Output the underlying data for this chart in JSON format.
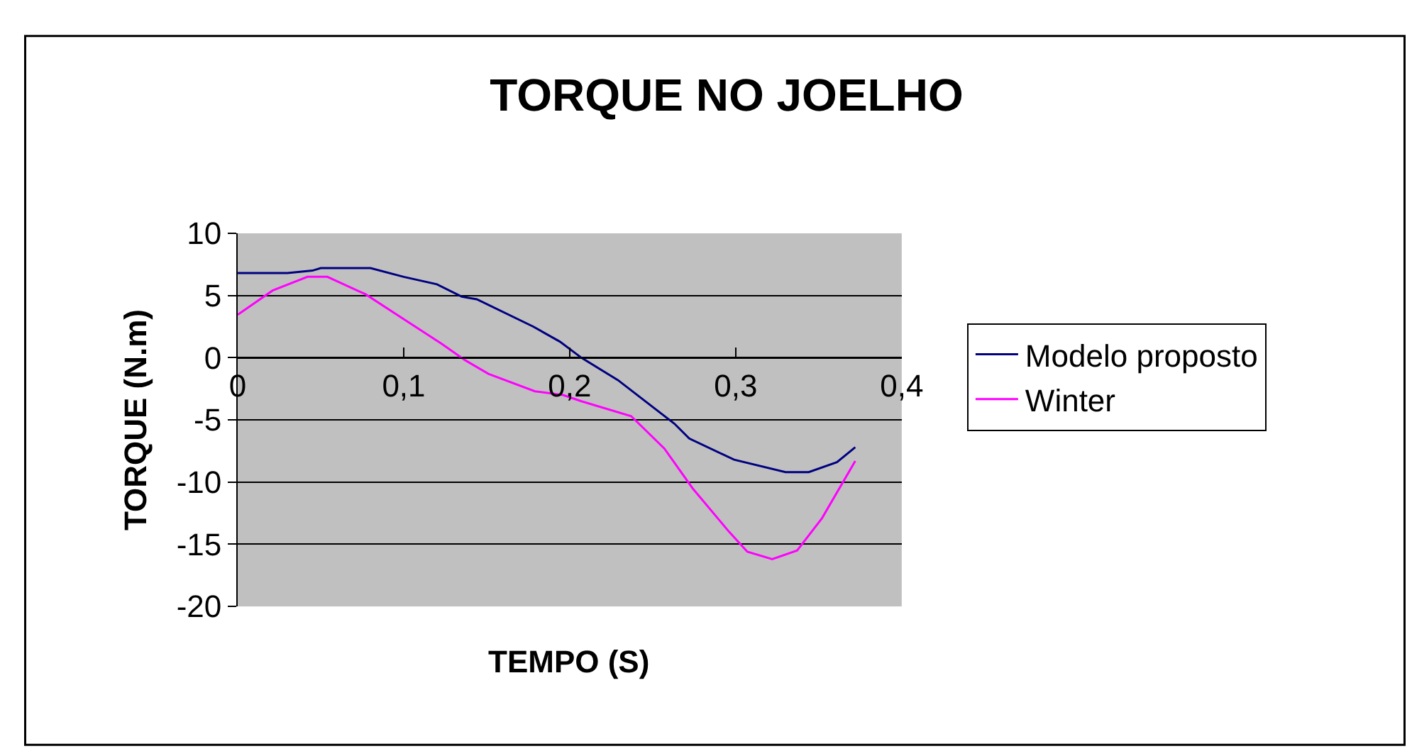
{
  "chart_data": {
    "type": "line",
    "title": "TORQUE NO JOELHO",
    "xlabel": "TEMPO (S)",
    "ylabel": "TORQUE (N.m)",
    "series": [
      {
        "name": "Modelo proposto",
        "color": "#000080",
        "x": [
          0,
          0.02,
          0.03,
          0.045,
          0.05,
          0.06,
          0.08,
          0.1,
          0.12,
          0.135,
          0.144,
          0.178,
          0.194,
          0.207,
          0.229,
          0.263,
          0.272,
          0.299,
          0.33,
          0.344,
          0.361,
          0.372
        ],
        "values": [
          6.8,
          6.8,
          6.8,
          7.0,
          7.2,
          7.2,
          7.2,
          6.5,
          5.9,
          4.9,
          4.7,
          2.5,
          1.3,
          0,
          -1.8,
          -5.3,
          -6.5,
          -8.2,
          -9.2,
          -9.2,
          -8.4,
          -7.2
        ]
      },
      {
        "name": "Winter",
        "color": "#ff00ff",
        "x": [
          0,
          0.021,
          0.042,
          0.054,
          0.077,
          0.1,
          0.123,
          0.137,
          0.151,
          0.179,
          0.196,
          0.207,
          0.237,
          0.257,
          0.274,
          0.296,
          0.307,
          0.322,
          0.337,
          0.352,
          0.372
        ],
        "values": [
          3.45,
          5.4,
          6.5,
          6.5,
          5.1,
          3.1,
          1.1,
          -0.2,
          -1.3,
          -2.7,
          -3.0,
          -3.5,
          -4.7,
          -7.3,
          -10.5,
          -14.0,
          -15.6,
          -16.2,
          -15.5,
          -12.9,
          -8.3
        ]
      }
    ],
    "xlim": [
      0,
      0.4
    ],
    "xticks": [
      {
        "value": 0,
        "label": "0"
      },
      {
        "value": 0.1,
        "label": "0,1"
      },
      {
        "value": 0.2,
        "label": "0,2"
      },
      {
        "value": 0.3,
        "label": "0,3"
      },
      {
        "value": 0.4,
        "label": "0,4"
      }
    ],
    "ylim": [
      -20,
      10
    ],
    "yticks": [
      -20,
      -15,
      -10,
      -5,
      0,
      5,
      10
    ],
    "grid": "y",
    "legend": "right",
    "marker": "none",
    "line_style": "solid"
  }
}
